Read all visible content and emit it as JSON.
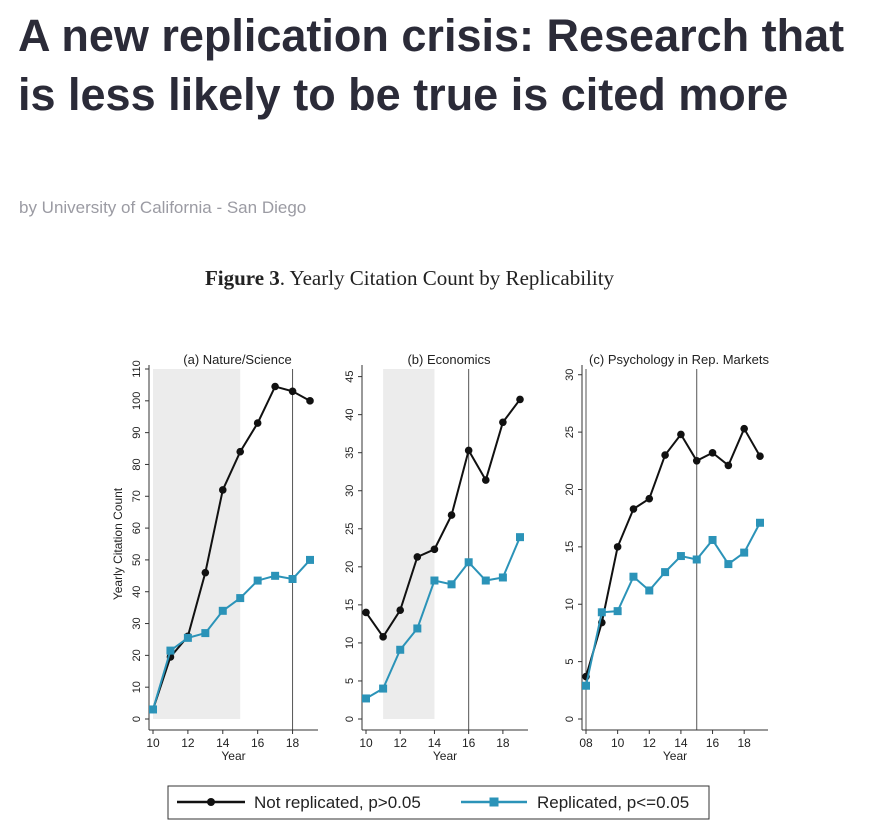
{
  "article": {
    "title": "A new replication crisis: Research that is less likely to be true is cited more",
    "byline": "by University of California - San Diego"
  },
  "figure": {
    "label": "Figure 3",
    "caption": ". Yearly Citation Count by Replicability"
  },
  "colors": {
    "not_replicated": "#111111",
    "replicated": "#2b93b8",
    "shade": "#ececec"
  },
  "legend": {
    "not_replicated": "Not replicated, p>0.05",
    "replicated": "Replicated, p<=0.05"
  },
  "chart_data": [
    {
      "type": "line",
      "title": "(a) Nature/Science",
      "xlabel": "Year",
      "ylabel": "Yearly Citation Count",
      "xlim": [
        10,
        19
      ],
      "ylim": [
        0,
        110
      ],
      "xticks": [
        10,
        12,
        14,
        16,
        18
      ],
      "yticks": [
        0,
        10,
        20,
        30,
        40,
        50,
        60,
        70,
        80,
        90,
        100,
        110
      ],
      "shade_range": [
        10,
        15
      ],
      "vline": 18,
      "x": [
        10,
        11,
        12,
        13,
        14,
        15,
        16,
        17,
        18,
        19
      ],
      "series": [
        {
          "key": "not_replicated",
          "values": [
            3,
            19.5,
            26,
            46,
            72,
            84,
            93,
            104.5,
            103,
            100
          ]
        },
        {
          "key": "replicated",
          "values": [
            3,
            21.5,
            25.5,
            27,
            34,
            38,
            43.5,
            45,
            44,
            50
          ]
        }
      ]
    },
    {
      "type": "line",
      "title": "(b) Economics",
      "xlabel": "Year",
      "ylabel": "",
      "xlim": [
        10,
        19
      ],
      "ylim": [
        0,
        46
      ],
      "xticks": [
        10,
        12,
        14,
        16,
        18
      ],
      "yticks": [
        0,
        5,
        10,
        15,
        20,
        25,
        30,
        35,
        40,
        45
      ],
      "shade_range": [
        11,
        14
      ],
      "vline": 16,
      "x": [
        10,
        11,
        12,
        13,
        14,
        15,
        16,
        17,
        18,
        19
      ],
      "series": [
        {
          "key": "not_replicated",
          "values": [
            14,
            10.8,
            14.3,
            21.3,
            22.3,
            26.8,
            35.3,
            31.4,
            39,
            42
          ]
        },
        {
          "key": "replicated",
          "values": [
            2.7,
            4,
            9.1,
            11.9,
            18.2,
            17.7,
            20.6,
            18.2,
            18.6,
            23.9
          ]
        }
      ]
    },
    {
      "type": "line",
      "title": "(c) Psychology in Rep. Markets",
      "xlabel": "Year",
      "ylabel": "",
      "xlim": [
        8,
        19
      ],
      "ylim": [
        0,
        30.5
      ],
      "xticks": [
        8,
        10,
        12,
        14,
        16,
        18
      ],
      "xticklabels": [
        "08",
        "10",
        "12",
        "14",
        "16",
        "18"
      ],
      "yticks": [
        0,
        5,
        10,
        15,
        20,
        25,
        30
      ],
      "shade_range": null,
      "vline_list": [
        8,
        15
      ],
      "x": [
        8,
        9,
        10,
        11,
        12,
        13,
        14,
        15,
        16,
        17,
        18,
        19
      ],
      "series": [
        {
          "key": "not_replicated",
          "values": [
            3.7,
            8.4,
            15,
            18.3,
            19.2,
            23,
            24.8,
            22.5,
            23.2,
            22.1,
            25.3,
            22.9
          ]
        },
        {
          "key": "replicated",
          "values": [
            2.9,
            9.3,
            9.4,
            12.4,
            11.2,
            12.8,
            14.2,
            13.9,
            15.6,
            13.5,
            14.5,
            17.1
          ]
        }
      ]
    }
  ]
}
